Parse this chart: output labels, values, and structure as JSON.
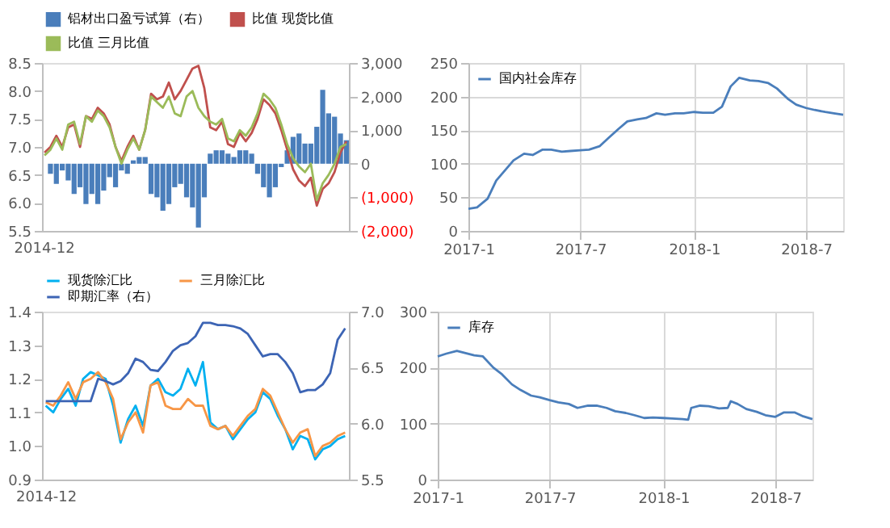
{
  "chart_data": [
    {
      "type": "line",
      "legend": "top",
      "ylim": [
        5.5,
        8.5
      ],
      "yticks": [
        5.5,
        {
          "value": 6,
          "label": "6.0"
        },
        6.5,
        {
          "value": 7,
          "label": "7.0"
        },
        7.5,
        {
          "value": 8,
          "label": "8.0"
        },
        8.5
      ],
      "y2lim": [
        -2000,
        3000
      ],
      "y2ticks": [
        {
          "value": -2000,
          "label": "(2,000)"
        },
        {
          "value": -1000,
          "label": "(1,000)"
        },
        0,
        {
          "value": 1000,
          "label": "1,000"
        },
        {
          "value": 2000,
          "label": "2,000"
        },
        {
          "value": 3000,
          "label": "3,000"
        }
      ],
      "categories": [
        "2014-12",
        null,
        null,
        null,
        null,
        null,
        null,
        null,
        null,
        null,
        null,
        null,
        null,
        null,
        null,
        null,
        null,
        null,
        null,
        null,
        null,
        null,
        null,
        null,
        null,
        null,
        null,
        null,
        null,
        null,
        null,
        null,
        null,
        null,
        null,
        null,
        null,
        null,
        null,
        null,
        null,
        null,
        null,
        null,
        null,
        null,
        null,
        null,
        null,
        null,
        null,
        null
      ],
      "series": [
        {
          "name": "铝材出口盈亏试算（右）",
          "type": "bar",
          "axis": "y2",
          "color": "#4a7ebb",
          "values": [
            0,
            -300,
            -600,
            -200,
            -500,
            -900,
            -700,
            -1200,
            -900,
            -1200,
            -800,
            -400,
            -700,
            -200,
            -300,
            100,
            200,
            200,
            -900,
            -1000,
            -1400,
            -1200,
            -700,
            -600,
            -1000,
            -1300,
            -1900,
            -1000,
            300,
            400,
            400,
            300,
            200,
            400,
            400,
            300,
            -300,
            -700,
            -1000,
            -700,
            -100,
            400,
            800,
            900,
            600,
            600,
            1100,
            2200,
            1500,
            1400,
            900,
            700
          ]
        },
        {
          "name": "比值 现货比值",
          "color": "#c0504d",
          "values": [
            6.9,
            7.0,
            7.2,
            7.0,
            7.35,
            7.4,
            7.0,
            7.55,
            7.5,
            7.7,
            7.6,
            7.4,
            7.0,
            6.75,
            7.0,
            7.2,
            6.95,
            7.3,
            7.95,
            7.85,
            7.9,
            8.15,
            7.85,
            8.0,
            8.2,
            8.4,
            8.45,
            8.05,
            7.35,
            7.3,
            7.45,
            7.05,
            7.0,
            7.25,
            7.1,
            7.25,
            7.5,
            7.85,
            7.75,
            7.6,
            7.3,
            6.95,
            6.6,
            6.4,
            6.3,
            6.45,
            5.95,
            6.25,
            6.35,
            6.55,
            6.9,
            7.1
          ]
        },
        {
          "name": "比值 三月比值",
          "color": "#9bbb59",
          "values": [
            6.85,
            6.95,
            7.15,
            6.95,
            7.4,
            7.45,
            7.05,
            7.55,
            7.45,
            7.65,
            7.55,
            7.35,
            7.0,
            6.7,
            6.95,
            7.15,
            6.95,
            7.3,
            7.9,
            7.8,
            7.7,
            7.9,
            7.6,
            7.55,
            7.9,
            8.0,
            7.7,
            7.55,
            7.45,
            7.4,
            7.5,
            7.15,
            7.1,
            7.3,
            7.2,
            7.35,
            7.6,
            7.95,
            7.85,
            7.7,
            7.4,
            7.05,
            6.8,
            6.65,
            6.55,
            6.7,
            6.05,
            6.35,
            6.5,
            6.7,
            7.0,
            7.05
          ]
        }
      ]
    },
    {
      "type": "line",
      "legend": "top left",
      "grid": true,
      "ylim": [
        0,
        250
      ],
      "yticks": [
        0,
        50,
        100,
        150,
        200,
        250
      ],
      "xlim": [
        "2017-01-01",
        "2018-08-30"
      ],
      "xticks": [
        {
          "value": "2017-01",
          "label": "2017-1"
        },
        {
          "value": "2017-07",
          "label": "2017-7"
        },
        {
          "value": "2018-01",
          "label": "2018-1"
        },
        {
          "value": "2018-07",
          "label": "2018-7"
        }
      ],
      "series": [
        {
          "name": "国内社会库存",
          "color": "#4a7ebb",
          "x": [
            "2017-01-01",
            "2017-01-15",
            "2017-02-01",
            "2017-02-15",
            "2017-03-01",
            "2017-03-15",
            "2017-04-01",
            "2017-04-15",
            "2017-05-01",
            "2017-05-15",
            "2017-06-01",
            "2017-06-15",
            "2017-07-01",
            "2017-07-15",
            "2017-08-01",
            "2017-08-15",
            "2017-09-01",
            "2017-09-15",
            "2017-10-01",
            "2017-10-15",
            "2017-11-01",
            "2017-11-15",
            "2017-12-01",
            "2017-12-15",
            "2018-01-01",
            "2018-01-15",
            "2018-02-01",
            "2018-02-15",
            "2018-03-01",
            "2018-03-15",
            "2018-04-01",
            "2018-04-15",
            "2018-05-01",
            "2018-05-15",
            "2018-06-01",
            "2018-06-15",
            "2018-07-01",
            "2018-07-15",
            "2018-08-01",
            "2018-08-15",
            "2018-08-30"
          ],
          "values": [
            33,
            35,
            48,
            75,
            90,
            105,
            115,
            113,
            121,
            121,
            118,
            119,
            120,
            121,
            126,
            138,
            152,
            163,
            166,
            168,
            175,
            173,
            175,
            175,
            177,
            176,
            176,
            185,
            215,
            228,
            224,
            223,
            220,
            212,
            197,
            188,
            183,
            180,
            177,
            175,
            173
          ]
        }
      ]
    },
    {
      "type": "line",
      "legend": "top",
      "ylim": [
        0.9,
        1.4
      ],
      "yticks": [
        0.9,
        {
          "value": 1,
          "label": "1.0"
        },
        1.1,
        1.2,
        1.3,
        1.4
      ],
      "y2lim": [
        5.5,
        7
      ],
      "y2ticks": [
        5.5,
        {
          "value": 6,
          "label": "6.0"
        },
        6.5,
        {
          "value": 7,
          "label": "7.0"
        }
      ],
      "categories": [
        "2014-12",
        null,
        null,
        null,
        null,
        null,
        null,
        null,
        null,
        null,
        null,
        null,
        null,
        null,
        null,
        null,
        null,
        null,
        null,
        null,
        null,
        null,
        null,
        null,
        null,
        null,
        null,
        null,
        null,
        null,
        null,
        null,
        null,
        null,
        null,
        null,
        null,
        null,
        null,
        null,
        null
      ],
      "series": [
        {
          "name": "现货除汇比",
          "color": "#00b0f0",
          "values": [
            1.12,
            1.1,
            1.14,
            1.17,
            1.12,
            1.2,
            1.22,
            1.21,
            1.2,
            1.12,
            1.01,
            1.08,
            1.12,
            1.06,
            1.18,
            1.2,
            1.16,
            1.15,
            1.17,
            1.23,
            1.18,
            1.25,
            1.07,
            1.05,
            1.06,
            1.02,
            1.05,
            1.08,
            1.1,
            1.16,
            1.14,
            1.09,
            1.05,
            0.99,
            1.03,
            1.02,
            0.96,
            0.99,
            1.0,
            1.02,
            1.03
          ]
        },
        {
          "name": "三月除汇比",
          "color": "#f79646",
          "values": [
            1.13,
            1.12,
            1.15,
            1.19,
            1.14,
            1.19,
            1.2,
            1.22,
            1.19,
            1.14,
            1.02,
            1.07,
            1.1,
            1.04,
            1.18,
            1.19,
            1.12,
            1.11,
            1.11,
            1.14,
            1.12,
            1.12,
            1.06,
            1.05,
            1.06,
            1.03,
            1.06,
            1.09,
            1.11,
            1.17,
            1.15,
            1.1,
            1.05,
            1.01,
            1.04,
            1.05,
            0.97,
            1.0,
            1.01,
            1.03,
            1.04
          ]
        },
        {
          "name": "即期汇率（右）",
          "axis": "y2",
          "color": "#3c64b4",
          "values": [
            6.2,
            6.2,
            6.2,
            6.2,
            6.2,
            6.2,
            6.2,
            6.4,
            6.38,
            6.35,
            6.38,
            6.45,
            6.58,
            6.55,
            6.48,
            6.47,
            6.55,
            6.65,
            6.7,
            6.72,
            6.78,
            6.9,
            6.9,
            6.88,
            6.88,
            6.87,
            6.85,
            6.8,
            6.7,
            6.6,
            6.62,
            6.62,
            6.55,
            6.45,
            6.28,
            6.3,
            6.3,
            6.35,
            6.45,
            6.75,
            6.85
          ]
        }
      ]
    },
    {
      "type": "line",
      "legend": "top left",
      "grid": true,
      "ylim": [
        0,
        300
      ],
      "yticks": [
        0,
        100,
        200,
        300
      ],
      "xlim": [
        "2017-01-01",
        "2018-08-30"
      ],
      "xticks": [
        {
          "value": "2017-01",
          "label": "2017-1"
        },
        {
          "value": "2017-07",
          "label": "2017-7"
        },
        {
          "value": "2018-01",
          "label": "2018-1"
        },
        {
          "value": "2018-07",
          "label": "2018-7"
        }
      ],
      "series": [
        {
          "name": "库存",
          "color": "#4a7ebb",
          "x": [
            "2017-01-01",
            "2017-01-15",
            "2017-02-01",
            "2017-02-15",
            "2017-03-01",
            "2017-03-15",
            "2017-04-01",
            "2017-04-15",
            "2017-05-01",
            "2017-05-15",
            "2017-06-01",
            "2017-06-15",
            "2017-07-01",
            "2017-07-15",
            "2017-08-01",
            "2017-08-15",
            "2017-09-01",
            "2017-09-15",
            "2017-10-01",
            "2017-10-15",
            "2017-11-01",
            "2017-11-15",
            "2017-12-01",
            "2017-12-15",
            "2018-01-01",
            "2018-01-15",
            "2018-02-01",
            "2018-02-10",
            "2018-02-15",
            "2018-03-01",
            "2018-03-15",
            "2018-04-01",
            "2018-04-15",
            "2018-04-20",
            "2018-05-01",
            "2018-05-15",
            "2018-06-01",
            "2018-06-15",
            "2018-07-01",
            "2018-07-15",
            "2018-08-01",
            "2018-08-15",
            "2018-08-30"
          ],
          "values": [
            220,
            225,
            230,
            226,
            222,
            220,
            200,
            188,
            170,
            160,
            150,
            147,
            142,
            138,
            135,
            128,
            132,
            132,
            128,
            122,
            119,
            115,
            110,
            111,
            110,
            109,
            108,
            107,
            128,
            132,
            131,
            127,
            128,
            140,
            135,
            126,
            121,
            115,
            112,
            120,
            120,
            113,
            108
          ]
        }
      ]
    }
  ]
}
